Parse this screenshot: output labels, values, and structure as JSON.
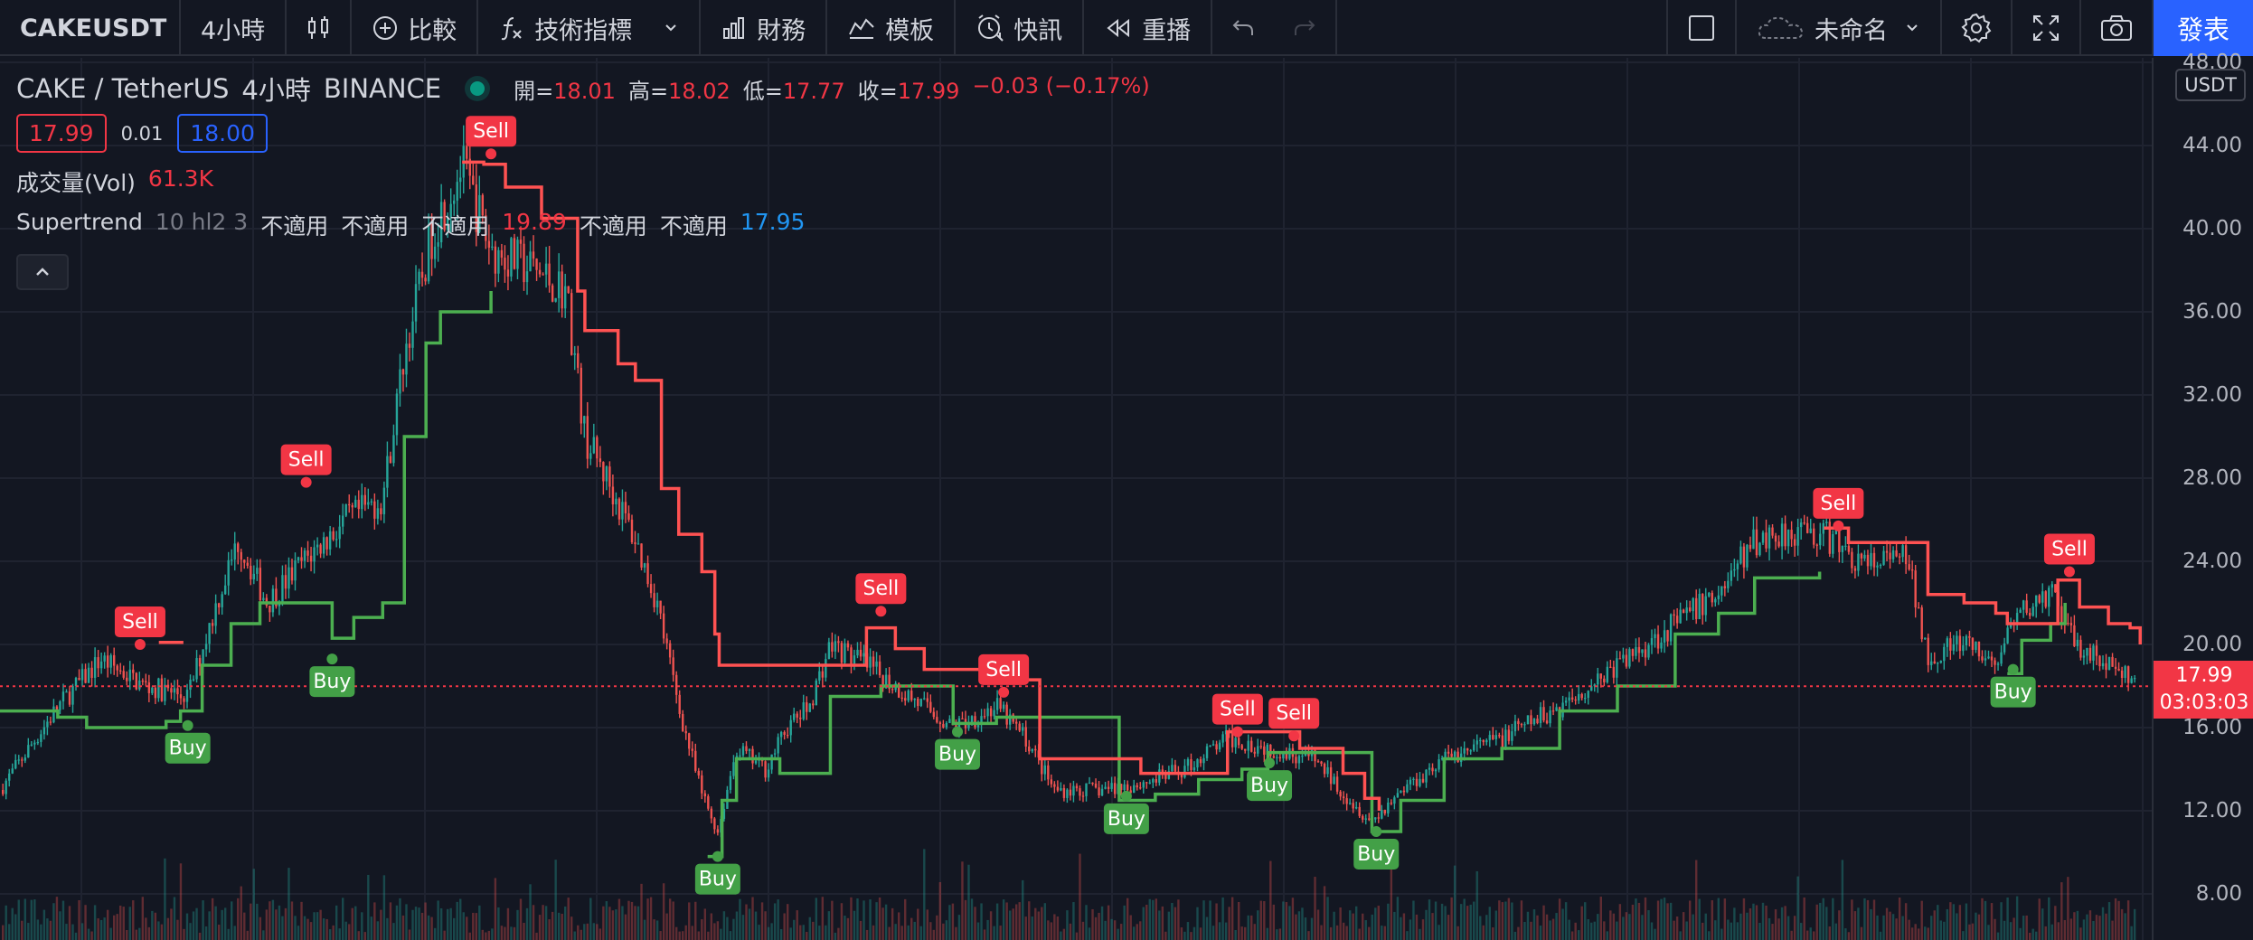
{
  "toolbar": {
    "symbol": "CAKEUSDT",
    "interval": "4小時",
    "compare": "比較",
    "indicators": "技術指標",
    "financials": "財務",
    "templates": "模板",
    "alert": "快訊",
    "replay": "重播",
    "layout_name": "未命名",
    "publish": "發表"
  },
  "legend": {
    "symbol_title": "CAKE / TetherUS",
    "interval": "4小時",
    "exchange": "BINANCE",
    "open_label": "開=",
    "open": "18.01",
    "high_label": "高=",
    "high": "18.02",
    "low_label": "低=",
    "low": "17.77",
    "close_label": "收=",
    "close": "17.99",
    "change": "−0.03 (−0.17%)",
    "sell_price": "17.99",
    "spread": "0.01",
    "buy_price": "18.00",
    "volume_label": "成交量(Vol)",
    "volume_value": "61.3K",
    "st_name": "Supertrend",
    "st_params": "10 hl2 3",
    "na1": "不適用",
    "na2": "不適用",
    "na3": "不適用",
    "st_up_value": "19.89",
    "na4": "不適用",
    "na5": "不適用",
    "st_down_value": "17.95"
  },
  "price_scale": {
    "currency": "USDT",
    "ticks": [
      "48.00",
      "44.00",
      "40.00",
      "36.00",
      "32.00",
      "28.00",
      "24.00",
      "20.00",
      "16.00",
      "12.00",
      "8.00"
    ],
    "current_price": "17.99",
    "countdown": "03:03:03"
  },
  "colors": {
    "background": "#131722",
    "grid": "#1f2330",
    "up": "#26a69a",
    "down": "#ef5350",
    "supertrend_up": "#4caf50",
    "supertrend_down": "#ff5252",
    "sell_label": "#f23645",
    "buy_label": "#43a047"
  },
  "chart_data": {
    "type": "candlestick",
    "symbol": "CAKEUSDT",
    "interval": "4h",
    "y_range": [
      6.4,
      48
    ],
    "supertrend_down": [
      [
        110,
        20.1
      ],
      [
        127,
        20.1
      ],
      [
        320,
        43.2
      ],
      [
        335,
        43.1
      ],
      [
        350,
        42.0
      ],
      [
        375,
        40.5
      ],
      [
        392,
        40.5
      ],
      [
        400,
        37.0
      ],
      [
        405,
        35.1
      ],
      [
        420,
        35.1
      ],
      [
        428,
        33.5
      ],
      [
        440,
        32.7
      ],
      [
        452,
        32.7
      ],
      [
        458,
        27.5
      ],
      [
        470,
        25.3
      ],
      [
        482,
        25.3
      ],
      [
        486,
        23.5
      ],
      [
        495,
        20.5
      ],
      [
        498,
        19.0
      ],
      [
        600,
        20.8
      ],
      [
        620,
        19.8
      ],
      [
        640,
        18.8
      ],
      [
        680,
        18.3
      ],
      [
        720,
        14.5
      ],
      [
        760,
        14.5
      ],
      [
        790,
        13.8
      ],
      [
        820,
        13.8
      ],
      [
        850,
        15.8
      ],
      [
        900,
        15.0
      ],
      [
        930,
        13.8
      ],
      [
        945,
        12.6
      ],
      [
        955,
        12.0
      ],
      [
        1263,
        25.6
      ],
      [
        1280,
        24.9
      ],
      [
        1320,
        24.9
      ],
      [
        1335,
        22.4
      ],
      [
        1360,
        22.0
      ],
      [
        1382,
        21.5
      ],
      [
        1390,
        21.0
      ],
      [
        1425,
        23.1
      ],
      [
        1440,
        21.8
      ],
      [
        1460,
        21.0
      ],
      [
        1475,
        20.8
      ],
      [
        1482,
        20.0
      ]
    ],
    "supertrend_up": [
      [
        0,
        16.8
      ],
      [
        40,
        16.5
      ],
      [
        60,
        16.0
      ],
      [
        100,
        16.0
      ],
      [
        115,
        16.3
      ],
      [
        125,
        16.8
      ],
      [
        140,
        19.0
      ],
      [
        160,
        21.0
      ],
      [
        180,
        22.0
      ],
      [
        210,
        22.0
      ],
      [
        230,
        20.3
      ],
      [
        245,
        21.3
      ],
      [
        265,
        22.0
      ],
      [
        280,
        30.0
      ],
      [
        295,
        34.5
      ],
      [
        305,
        36.0
      ],
      [
        335,
        36.0
      ],
      [
        340,
        37.0
      ],
      [
        490,
        9.8
      ],
      [
        500,
        12.5
      ],
      [
        510,
        14.5
      ],
      [
        520,
        14.5
      ],
      [
        540,
        13.8
      ],
      [
        560,
        13.8
      ],
      [
        575,
        17.5
      ],
      [
        610,
        18.0
      ],
      [
        660,
        16.2
      ],
      [
        690,
        16.5
      ],
      [
        700,
        16.5
      ],
      [
        775,
        12.5
      ],
      [
        800,
        12.8
      ],
      [
        830,
        13.5
      ],
      [
        860,
        14.0
      ],
      [
        878,
        14.8
      ],
      [
        950,
        11.0
      ],
      [
        970,
        12.5
      ],
      [
        1000,
        14.5
      ],
      [
        1040,
        15.0
      ],
      [
        1080,
        16.8
      ],
      [
        1120,
        18.0
      ],
      [
        1160,
        20.5
      ],
      [
        1190,
        21.5
      ],
      [
        1215,
        23.2
      ],
      [
        1260,
        23.5
      ],
      [
        1390,
        18.6
      ],
      [
        1400,
        20.2
      ],
      [
        1420,
        21.0
      ],
      [
        1430,
        22.0
      ]
    ],
    "signals": [
      {
        "type": "Sell",
        "x": 97,
        "price": 20.0
      },
      {
        "type": "Buy",
        "x": 130,
        "price": 16.1
      },
      {
        "type": "Sell",
        "x": 212,
        "price": 27.8
      },
      {
        "type": "Buy",
        "x": 230,
        "price": 19.3
      },
      {
        "type": "Sell",
        "x": 340,
        "price": 43.6
      },
      {
        "type": "Buy",
        "x": 497,
        "price": 9.8
      },
      {
        "type": "Sell",
        "x": 610,
        "price": 21.6
      },
      {
        "type": "Buy",
        "x": 663,
        "price": 15.8
      },
      {
        "type": "Sell",
        "x": 695,
        "price": 17.7
      },
      {
        "type": "Buy",
        "x": 780,
        "price": 12.7
      },
      {
        "type": "Sell",
        "x": 857,
        "price": 15.8
      },
      {
        "type": "Sell",
        "x": 896,
        "price": 15.6
      },
      {
        "type": "Buy",
        "x": 879,
        "price": 14.3
      },
      {
        "type": "Buy",
        "x": 953,
        "price": 11.0
      },
      {
        "type": "Sell",
        "x": 1273,
        "price": 25.7
      },
      {
        "type": "Sell",
        "x": 1433,
        "price": 23.5
      },
      {
        "type": "Buy",
        "x": 1394,
        "price": 18.8
      }
    ],
    "current_price": 17.99
  }
}
